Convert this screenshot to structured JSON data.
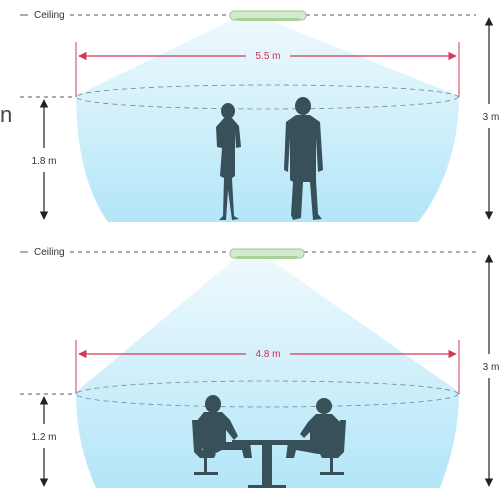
{
  "panels": [
    {
      "ceiling_label": "Ceiling",
      "span_label": "5.5 m",
      "mount_height_label": "3 m",
      "sensor_height_label": "1.8 m",
      "scene": "standing-people"
    },
    {
      "ceiling_label": "Ceiling",
      "span_label": "4.8 m",
      "mount_height_label": "3 m",
      "sensor_height_label": "1.2 m",
      "scene": "seated-meeting"
    }
  ],
  "edge_fragment": "n",
  "colors": {
    "cone_top": "#e9f7fd",
    "cone_bottom": "#a8e3f7",
    "span_line": "#d23a5a",
    "dim_line": "#222222",
    "dashed": "#555555",
    "sensor_fill": "#cfe6c8",
    "sensor_stroke": "#9cc48e",
    "silhouette": "#37505a"
  }
}
